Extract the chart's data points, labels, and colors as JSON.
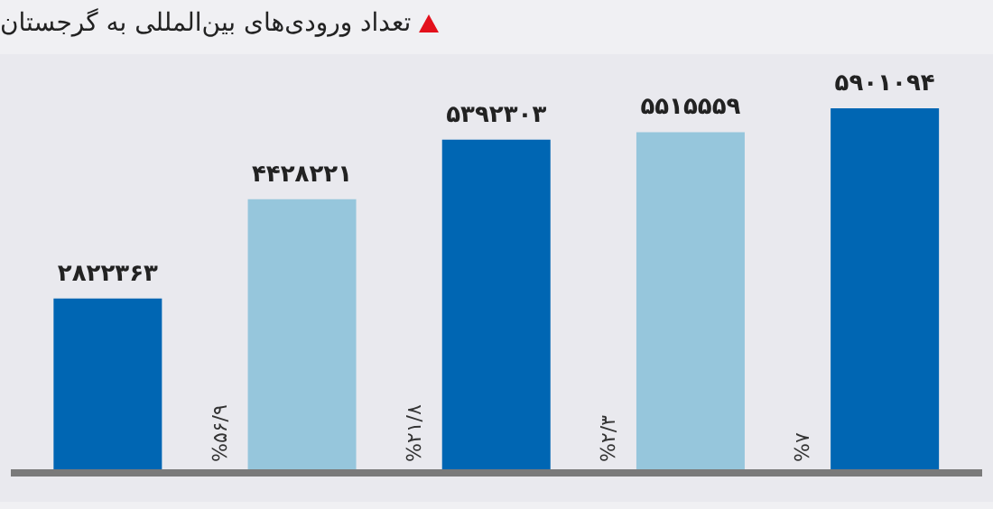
{
  "chart_data": {
    "type": "bar",
    "title": "تعداد ورودی‌های بین‌المللی به گرجستان",
    "categories": [
      null,
      null,
      null,
      null,
      null
    ],
    "values": [
      2822363,
      4428221,
      5392303,
      5515559,
      5901094
    ],
    "colors": [
      "#0066b3",
      "#96c6dc",
      "#0066b3",
      "#96c6dc",
      "#0066b3"
    ],
    "value_labels": [
      "۲۸۲۲۳۶۳",
      "۴۴۲۸۲۲۱",
      "۵۳۹۲۳۰۳",
      "۵۵۱۵۵۵۹",
      "۵۹۰۱۰۹۴"
    ],
    "annotations": [
      "%۵۶/۹",
      "%۲۱/۸",
      "%۲/۳",
      "%۷"
    ],
    "grid": false,
    "legend": false
  }
}
